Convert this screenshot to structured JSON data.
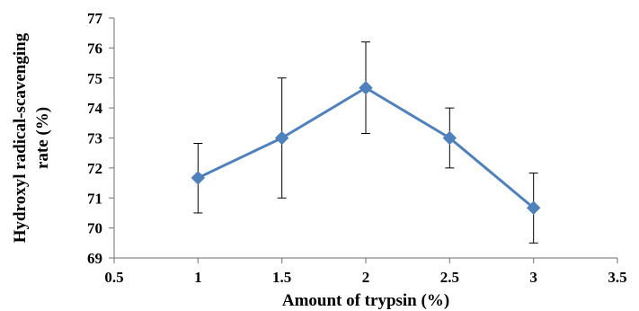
{
  "chart_data": {
    "type": "line",
    "title": "",
    "xlabel": "Amount of trypsin (%)",
    "ylabel_lines": [
      "Hydroxyl radical-scavenging",
      "rate (%)"
    ],
    "xlim": [
      0.5,
      3.5
    ],
    "ylim": [
      69,
      77
    ],
    "x_ticks": [
      0.5,
      1,
      1.5,
      2,
      2.5,
      3,
      3.5
    ],
    "x_tick_labels": [
      "0.5",
      "1",
      "1.5",
      "2",
      "2.5",
      "3",
      "3.5"
    ],
    "y_ticks": [
      69,
      70,
      71,
      72,
      73,
      74,
      75,
      76,
      77
    ],
    "y_tick_labels": [
      "69",
      "70",
      "71",
      "72",
      "73",
      "74",
      "75",
      "76",
      "77"
    ],
    "grid": false,
    "legend": "none",
    "series": [
      {
        "color": "#4f81bd",
        "marker": "diamond",
        "x": [
          1,
          1.5,
          2,
          2.5,
          3
        ],
        "values": [
          71.67,
          73.0,
          74.67,
          73.0,
          70.67
        ],
        "error_low": [
          70.5,
          71.0,
          73.15,
          72.0,
          69.5
        ],
        "error_high": [
          72.82,
          75.0,
          76.2,
          74.0,
          71.83
        ]
      }
    ]
  }
}
